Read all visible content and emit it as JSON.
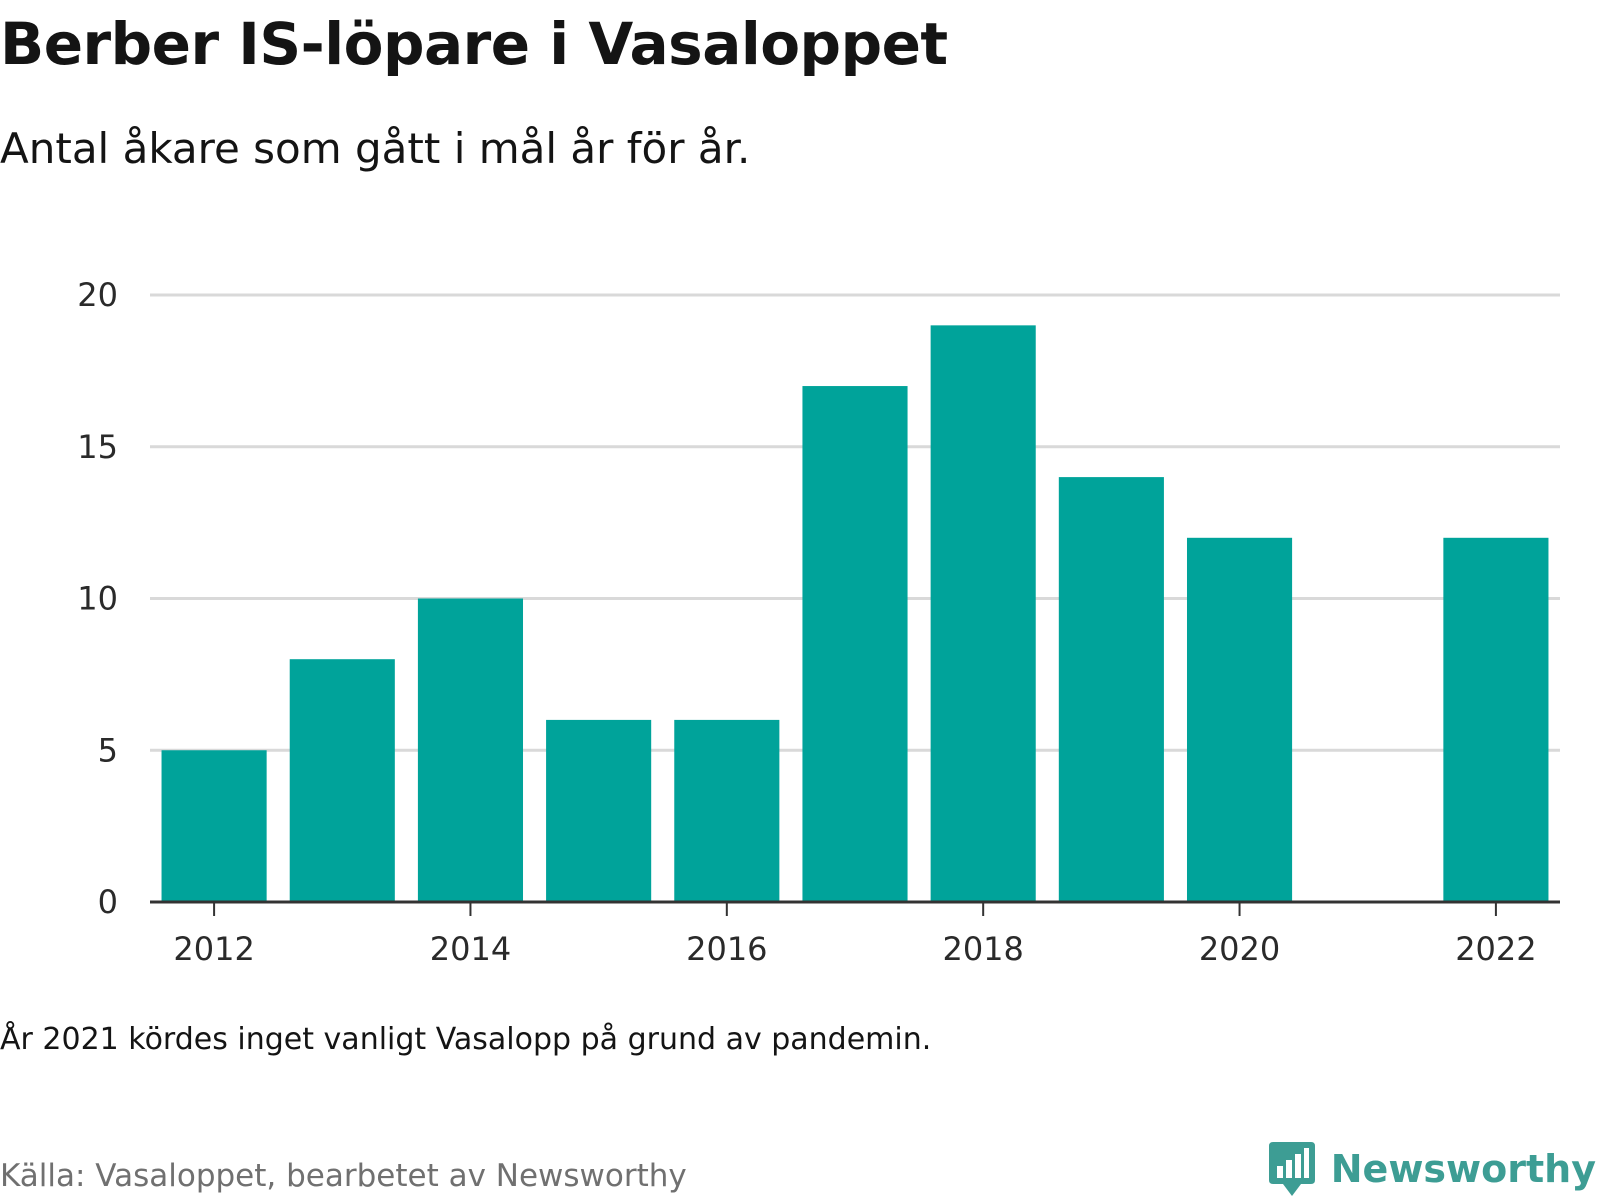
{
  "title": "Berber IS-löpare i Vasaloppet",
  "subtitle": "Antal åkare som gått i mål år för år.",
  "note": "År 2021 kördes inget vanligt Vasalopp på grund av pandemin.",
  "source": "Källa: Vasaloppet, bearbetet av Newsworthy",
  "brand": {
    "name": "Newsworthy",
    "logo_icon": "bar-chart-speech-bubble-icon"
  },
  "colors": {
    "bar": "#00a39a",
    "grid": "#d9d9d9",
    "axis": "#333333",
    "brand": "#3d9d94"
  },
  "chart_data": {
    "type": "bar",
    "title": "Berber IS-löpare i Vasaloppet",
    "subtitle": "Antal åkare som gått i mål år för år.",
    "xlabel": "",
    "ylabel": "",
    "x": [
      2012,
      2013,
      2014,
      2015,
      2016,
      2017,
      2018,
      2019,
      2020,
      2021,
      2022
    ],
    "values": [
      5,
      8,
      10,
      6,
      6,
      17,
      19,
      14,
      12,
      null,
      12
    ],
    "xlim": [
      2011.5,
      2022.5
    ],
    "ylim": [
      0,
      20
    ],
    "y_ticks": [
      0,
      5,
      10,
      15,
      20
    ],
    "x_ticks": [
      2012,
      2014,
      2016,
      2018,
      2020,
      2022
    ],
    "grid": true,
    "legend": "none"
  }
}
